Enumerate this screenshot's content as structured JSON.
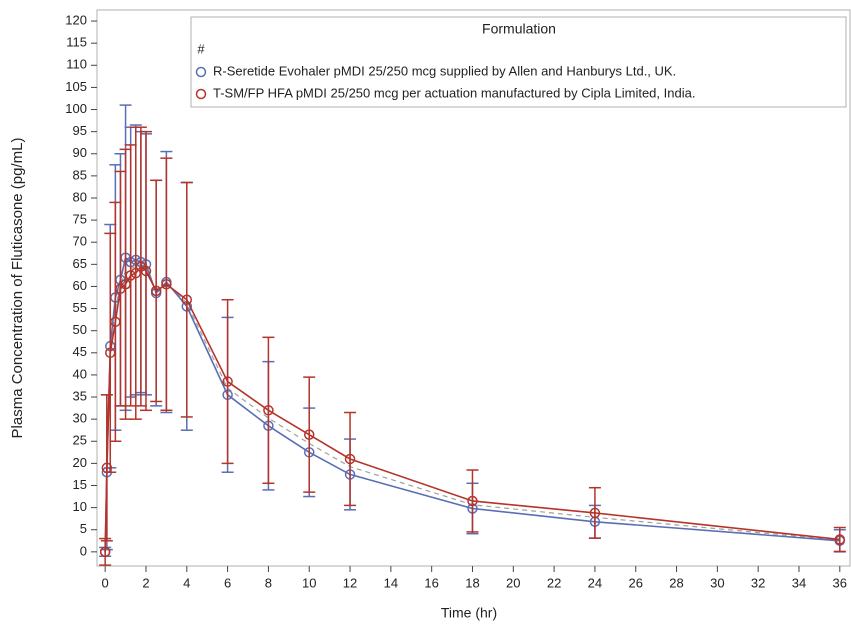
{
  "chart_data": {
    "type": "line",
    "y_label": "Plasma Concentration of Fluticasone (pg/mL)",
    "x_label": "Time (hr)",
    "legend_title": "Formulation",
    "legend": "top-right",
    "x": [
      0,
      0.083,
      0.25,
      0.5,
      0.75,
      1,
      1.25,
      1.5,
      1.75,
      2,
      2.5,
      3,
      4,
      6,
      8,
      10,
      12,
      18,
      24,
      36
    ],
    "xlim": [
      -0.4,
      36.5
    ],
    "xticks": [
      0,
      2,
      4,
      6,
      8,
      10,
      12,
      14,
      16,
      18,
      20,
      22,
      24,
      26,
      28,
      30,
      32,
      34,
      36
    ],
    "ylim": [
      -3.2,
      122.5
    ],
    "yticks": [
      0,
      5,
      10,
      15,
      20,
      25,
      30,
      35,
      40,
      45,
      50,
      55,
      60,
      65,
      70,
      75,
      80,
      85,
      90,
      95,
      100,
      105,
      110,
      115,
      120
    ],
    "series": [
      {
        "name": "#",
        "color": "#a0a0a0",
        "dashed": true,
        "values": [
          0,
          18.5,
          45.75,
          54.75,
          60.5,
          63.5,
          64,
          64.5,
          65,
          64.25,
          58.75,
          60.75,
          56.25,
          37,
          30.25,
          24.5,
          19.25,
          10.65,
          7.8,
          2.65
        ]
      },
      {
        "name": "R-Seretide Evohaler pMDI 25/250 mcg supplied by Allen and Hanburys Ltd., UK.",
        "color": "#5a6eb5",
        "values": [
          0,
          18,
          46.5,
          57.5,
          61.5,
          66.5,
          65.5,
          66,
          65.5,
          65,
          58.5,
          61,
          55.5,
          35.5,
          28.5,
          22.5,
          17.5,
          9.8,
          6.8,
          2.5
        ],
        "errors": [
          1,
          17.5,
          27.5,
          30,
          28.5,
          34.5,
          30.5,
          30.5,
          29.5,
          29.5,
          25.5,
          29.5,
          28,
          17.5,
          14.5,
          10,
          8,
          5.7,
          3.7,
          2.5
        ]
      },
      {
        "name": "T-SM/FP HFA pMDI 25/250 mcg per actuation manufactured by Cipla Limited, India.",
        "color": "#b5342a",
        "values": [
          0,
          19,
          45,
          52,
          59.5,
          60.5,
          62.5,
          63,
          64.5,
          63.5,
          59,
          60.5,
          57,
          38.5,
          32,
          26.5,
          21,
          11.5,
          8.8,
          2.8
        ],
        "errors": [
          3,
          16.5,
          27,
          27,
          26.5,
          30.5,
          29.5,
          33,
          31.5,
          31.5,
          25,
          28.5,
          26.5,
          18.5,
          16.5,
          13,
          10.5,
          7,
          5.7,
          2.7
        ]
      }
    ]
  }
}
